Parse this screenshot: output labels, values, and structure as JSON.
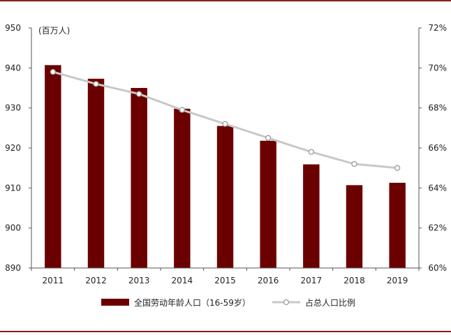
{
  "chart_data": {
    "type": "bar",
    "unit_label": "(百万人)",
    "categories": [
      "2011",
      "2012",
      "2013",
      "2014",
      "2015",
      "2016",
      "2017",
      "2018",
      "2019"
    ],
    "series": [
      {
        "name": "全国劳动年龄人口（16-59岁）",
        "type": "bar",
        "axis": "left",
        "color": "#6b0000",
        "values": [
          940.7,
          937.3,
          935.0,
          929.8,
          925.5,
          921.8,
          915.9,
          910.7,
          911.3
        ]
      },
      {
        "name": "占总人口比例",
        "type": "line",
        "axis": "right",
        "color": "#c8c8c8",
        "marker": "open-circle",
        "values": [
          69.8,
          69.2,
          68.7,
          67.9,
          67.2,
          66.5,
          65.8,
          65.2,
          65.0
        ]
      }
    ],
    "y_left": {
      "ylim": [
        890,
        950
      ],
      "ticks": [
        "890",
        "900",
        "910",
        "920",
        "930",
        "940",
        "950"
      ]
    },
    "y_right": {
      "ylim": [
        60,
        72
      ],
      "ticks": [
        "60%",
        "62%",
        "64%",
        "66%",
        "68%",
        "70%",
        "72%"
      ]
    },
    "grid": false,
    "legend_position": "bottom"
  }
}
